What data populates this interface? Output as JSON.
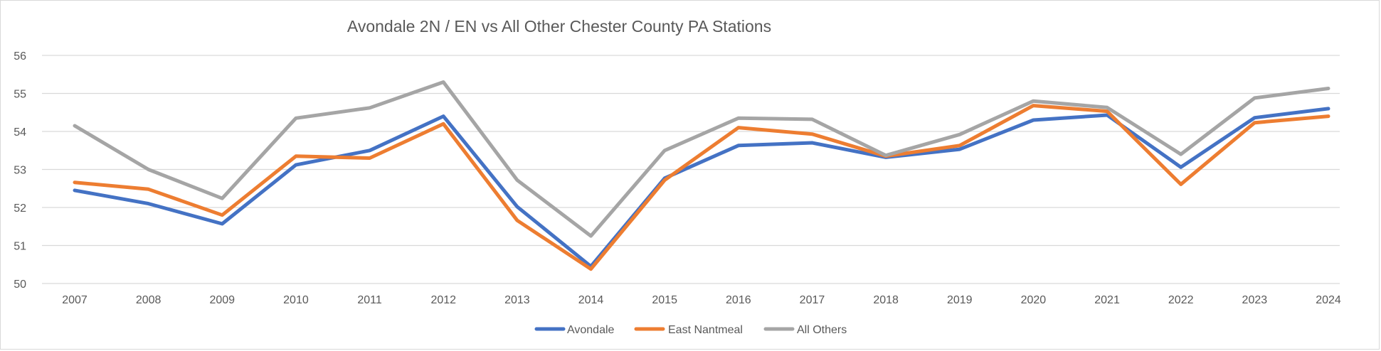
{
  "chart_data": {
    "type": "line",
    "title": "Avondale 2N / EN vs All Other Chester County PA Stations",
    "xlabel": "",
    "ylabel": "",
    "categories": [
      "2007",
      "2008",
      "2009",
      "2010",
      "2011",
      "2012",
      "2013",
      "2014",
      "2015",
      "2016",
      "2017",
      "2018",
      "2019",
      "2020",
      "2021",
      "2022",
      "2023",
      "2024"
    ],
    "ylim": [
      50,
      56
    ],
    "yticks": [
      50,
      51,
      52,
      53,
      54,
      55,
      56
    ],
    "grid": true,
    "legend_position": "bottom",
    "series": [
      {
        "name": "Avondale",
        "color": "#4472C4",
        "values": [
          52.45,
          52.1,
          51.57,
          53.12,
          53.5,
          54.4,
          52.02,
          50.45,
          52.77,
          53.63,
          53.7,
          53.32,
          53.53,
          54.3,
          54.43,
          53.06,
          54.36,
          54.6
        ]
      },
      {
        "name": "East Nantmeal",
        "color": "#ED7D31",
        "values": [
          52.66,
          52.48,
          51.8,
          53.35,
          53.3,
          54.2,
          51.66,
          50.38,
          52.72,
          54.1,
          53.93,
          53.35,
          53.63,
          54.68,
          54.53,
          52.61,
          54.23,
          54.4
        ]
      },
      {
        "name": "All Others",
        "color": "#A5A5A5",
        "values": [
          54.15,
          53.0,
          52.24,
          54.35,
          54.62,
          55.3,
          52.72,
          51.25,
          53.5,
          54.35,
          54.32,
          53.37,
          53.92,
          54.8,
          54.63,
          53.4,
          54.88,
          55.13
        ]
      }
    ]
  }
}
